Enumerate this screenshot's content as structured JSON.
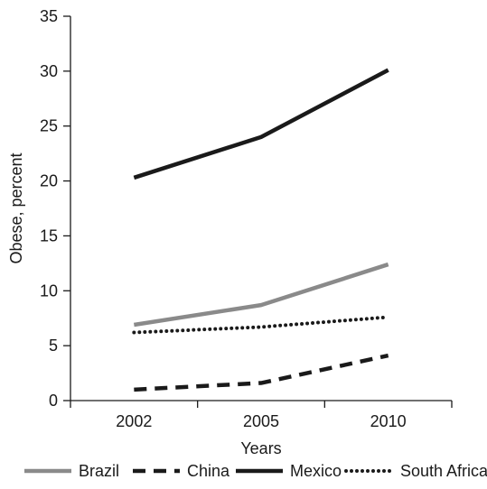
{
  "chart_data": {
    "type": "line",
    "title": "",
    "xlabel": "Years",
    "ylabel": "Obese, percent",
    "categories": [
      "2002",
      "2005",
      "2010"
    ],
    "ylim": [
      0,
      35
    ],
    "yticks": [
      0,
      5,
      10,
      15,
      20,
      25,
      30,
      35
    ],
    "grid": false,
    "legend_position": "bottom",
    "series": [
      {
        "name": "Brazil",
        "values": [
          6.9,
          8.7,
          12.4
        ],
        "color": "#8a8a8a",
        "style": "solid"
      },
      {
        "name": "China",
        "values": [
          1.0,
          1.6,
          4.1
        ],
        "color": "#1a1a1a",
        "style": "dashed"
      },
      {
        "name": "Mexico",
        "values": [
          20.3,
          24.0,
          30.1
        ],
        "color": "#1a1a1a",
        "style": "solid"
      },
      {
        "name": "South Africa",
        "values": [
          6.2,
          6.7,
          7.6
        ],
        "color": "#1a1a1a",
        "style": "dotted"
      }
    ]
  }
}
